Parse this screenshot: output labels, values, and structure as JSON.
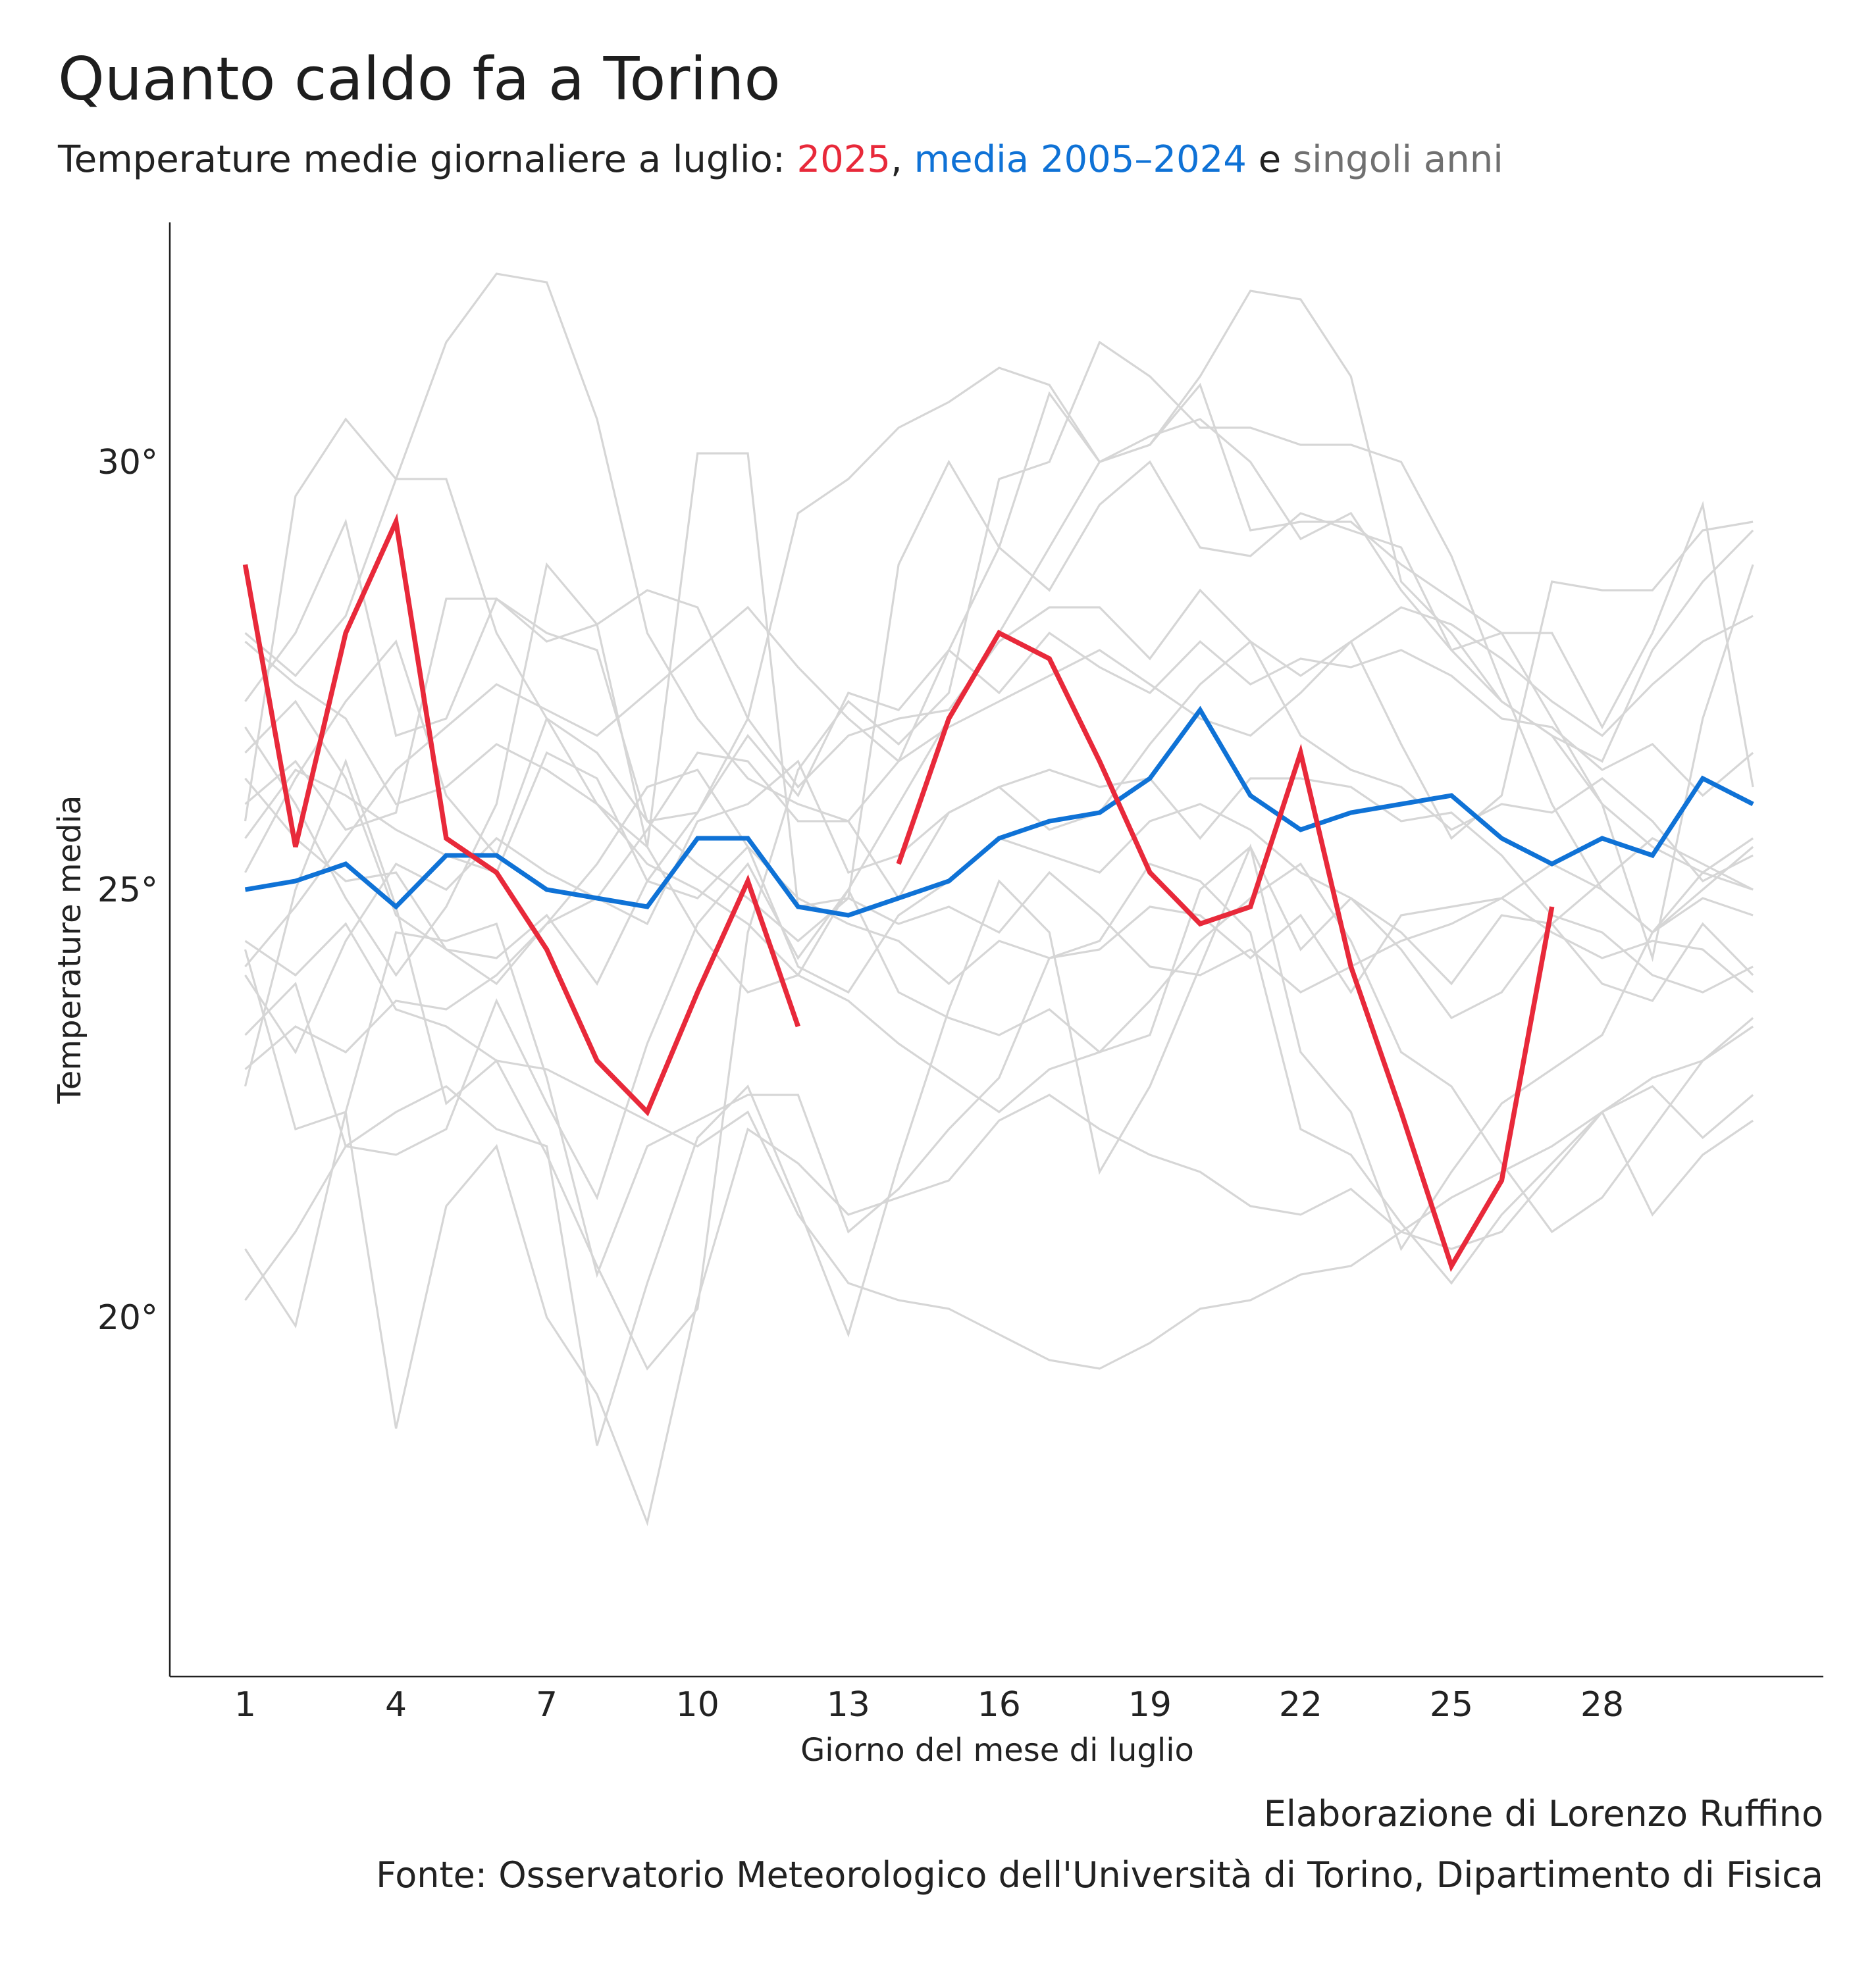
{
  "title": "Quanto caldo fa a Torino",
  "subtitle": {
    "prefix": "Temperature medie giornaliere a luglio: ",
    "year": "2025",
    "sep": ", ",
    "mean": "media 2005–2024",
    "conj": " e ",
    "single": "singoli anni"
  },
  "caption": {
    "author": "Elaborazione di Lorenzo Ruffino",
    "source": "Fonte: Osservatorio Meteorologico dell'Università di Torino, Dipartimento di Fisica"
  },
  "colors": {
    "year2025": "#e8293a",
    "mean": "#0f72d6",
    "single": "#d6d6d6",
    "axis": "#222222"
  },
  "chart_data": {
    "type": "line",
    "xlabel": "Giorno del mese di luglio",
    "ylabel": "Temperature media",
    "x_ticks": [
      1,
      4,
      7,
      10,
      13,
      16,
      19,
      22,
      25,
      28
    ],
    "x_tick_labels": [
      "1",
      "4",
      "7",
      "10",
      "13",
      "16",
      "19",
      "22",
      "25",
      "28"
    ],
    "y_ticks": [
      20,
      25,
      30
    ],
    "y_tick_labels": [
      "20°",
      "25°",
      "30°"
    ],
    "xlim": [
      -0.5,
      32.4
    ],
    "ylim": [
      15.8,
      32.8
    ],
    "grid": false,
    "days": [
      1,
      2,
      3,
      4,
      5,
      6,
      7,
      8,
      9,
      10,
      11,
      12,
      13,
      14,
      15,
      16,
      17,
      18,
      19,
      20,
      21,
      22,
      23,
      24,
      25,
      26,
      27,
      28,
      29,
      30,
      31
    ],
    "series": [
      {
        "name": "2025",
        "role": "highlight",
        "values": [
          28.8,
          25.5,
          28.0,
          29.3,
          25.6,
          25.2,
          24.3,
          23.0,
          22.4,
          23.8,
          25.1,
          23.4,
          null,
          25.3,
          27.0,
          28.0,
          27.7,
          26.5,
          25.2,
          24.6,
          24.8,
          26.6,
          24.1,
          22.4,
          20.6,
          21.6,
          24.8,
          null,
          null,
          null,
          null
        ]
      },
      {
        "name": "media 2005–2024",
        "role": "mean",
        "values": [
          25.0,
          25.1,
          25.3,
          24.8,
          25.4,
          25.4,
          25.0,
          24.9,
          24.8,
          25.6,
          25.6,
          24.8,
          24.7,
          24.9,
          25.1,
          25.6,
          25.8,
          25.9,
          26.3,
          27.1,
          26.1,
          25.7,
          25.9,
          26.0,
          26.1,
          25.6,
          25.3,
          25.6,
          25.4,
          26.3,
          26.0
        ]
      },
      {
        "role": "background",
        "values": [
          25.8,
          29.6,
          30.5,
          29.8,
          29.8,
          28.0,
          27.0,
          26.0,
          25.5,
          24.5,
          23.8,
          24.0,
          25.0,
          26.0,
          27.0,
          28.0,
          29.0,
          30.0,
          30.3,
          30.5,
          30.0,
          29.1,
          29.4,
          28.5,
          27.8,
          27.2,
          26.8,
          26.0,
          25.5,
          25.2,
          25.0
        ]
      },
      {
        "role": "background",
        "values": [
          28.0,
          27.5,
          28.2,
          29.8,
          31.4,
          32.2,
          32.1,
          30.5,
          28.0,
          27.0,
          26.3,
          26.0,
          25.8,
          26.5,
          27.8,
          29.0,
          30.8,
          30.0,
          30.2,
          31.0,
          32.0,
          31.9,
          31.0,
          28.6,
          28.0,
          27.2,
          26.8,
          26.5,
          27.8,
          28.6,
          29.2
        ]
      },
      {
        "role": "background",
        "values": [
          22.7,
          25.0,
          26.5,
          24.8,
          22.5,
          23.0,
          21.9,
          20.6,
          19.4,
          20.1,
          24.5,
          26.4,
          27.2,
          26.7,
          27.3,
          29.8,
          30.0,
          31.4,
          31.0,
          30.4,
          30.4,
          30.2,
          30.2,
          30.0,
          28.9,
          27.4,
          26.0,
          25.0,
          24.5,
          25.0,
          25.5
        ]
      },
      {
        "role": "background",
        "values": [
          27.2,
          28.0,
          29.3,
          26.8,
          27.0,
          28.4,
          28.0,
          27.8,
          25.8,
          25.9,
          27.0,
          29.4,
          29.8,
          30.4,
          30.7,
          31.1,
          30.9,
          30.0,
          30.2,
          30.9,
          29.2,
          29.3,
          29.3,
          28.8,
          28.4,
          28.0,
          27.0,
          26.0,
          24.2,
          27.0,
          28.8
        ]
      },
      {
        "role": "background",
        "values": [
          26.0,
          26.5,
          25.7,
          25.9,
          28.4,
          28.4,
          27.9,
          28.1,
          25.5,
          30.1,
          30.1,
          24.8,
          24.9,
          28.8,
          30.0,
          29.0,
          28.5,
          29.5,
          30.0,
          29.0,
          28.9,
          29.4,
          29.2,
          29.0,
          27.8,
          28.0,
          28.0,
          26.9,
          28.0,
          29.5,
          26.2
        ]
      },
      {
        "role": "background",
        "values": [
          26.9,
          26.0,
          24.9,
          24.0,
          24.8,
          26.0,
          28.8,
          28.1,
          28.5,
          28.3,
          27.0,
          26.2,
          26.8,
          27.0,
          27.1,
          27.9,
          28.3,
          28.3,
          27.7,
          28.5,
          27.9,
          27.5,
          27.9,
          26.7,
          25.6,
          26.1,
          28.6,
          28.5,
          28.5,
          29.2,
          29.3
        ]
      },
      {
        "role": "background",
        "values": [
          24.4,
          24.0,
          24.6,
          23.6,
          23.4,
          23.0,
          22.9,
          22.6,
          22.3,
          22.0,
          22.4,
          21.2,
          20.4,
          20.2,
          20.1,
          19.8,
          19.5,
          19.4,
          19.7,
          20.1,
          20.2,
          20.5,
          20.6,
          21.0,
          21.4,
          21.7,
          22.0,
          22.4,
          22.8,
          23.0,
          23.5
        ]
      },
      {
        "role": "background",
        "values": [
          20.2,
          21.0,
          22.0,
          22.4,
          22.7,
          22.2,
          22.0,
          18.5,
          20.4,
          22.1,
          22.7,
          21.3,
          19.8,
          21.8,
          23.6,
          25.1,
          24.5,
          21.7,
          22.7,
          24.1,
          25.5,
          23.1,
          22.4,
          20.8,
          21.7,
          22.5,
          22.9,
          23.3,
          24.5,
          24.9,
          24.7
        ]
      },
      {
        "role": "background",
        "values": [
          24.3,
          22.2,
          22.4,
          18.7,
          21.3,
          22.0,
          20.0,
          19.1,
          17.6,
          20.2,
          22.2,
          21.8,
          21.2,
          21.4,
          21.6,
          22.3,
          22.6,
          22.2,
          21.9,
          21.7,
          21.3,
          21.2,
          21.5,
          21.0,
          20.8,
          21.0,
          21.7,
          22.4,
          22.7,
          22.1,
          22.6
        ]
      },
      {
        "role": "background",
        "values": [
          20.8,
          19.9,
          22.4,
          24.5,
          24.4,
          24.6,
          22.8,
          20.5,
          22.0,
          22.3,
          22.6,
          22.6,
          21.0,
          21.5,
          22.2,
          22.8,
          24.2,
          24.4,
          25.3,
          25.1,
          24.5,
          22.2,
          21.9,
          21.1,
          20.4,
          21.2,
          21.8,
          22.4,
          21.2,
          21.9,
          22.3
        ]
      },
      {
        "role": "background",
        "values": [
          23.3,
          23.9,
          22.0,
          21.9,
          22.2,
          23.7,
          22.5,
          21.4,
          23.2,
          24.6,
          25.3,
          24.2,
          25.0,
          23.8,
          23.5,
          23.3,
          23.6,
          23.1,
          23.3,
          25.0,
          25.5,
          24.3,
          24.9,
          24.5,
          23.9,
          24.7,
          24.6,
          23.9,
          23.7,
          24.6,
          24.0
        ]
      },
      {
        "role": "background",
        "values": [
          22.9,
          23.4,
          23.1,
          23.7,
          23.6,
          24.0,
          24.6,
          24.9,
          25.7,
          26.6,
          26.5,
          25.8,
          25.8,
          24.9,
          25.9,
          26.2,
          26.4,
          26.2,
          26.3,
          25.6,
          26.3,
          26.3,
          26.2,
          25.8,
          25.9,
          25.4,
          24.7,
          24.5,
          24.0,
          23.8,
          24.1
        ]
      },
      {
        "role": "background",
        "values": [
          25.6,
          26.4,
          26.1,
          25.7,
          25.4,
          25.2,
          26.6,
          26.3,
          25.1,
          25.9,
          26.8,
          26.1,
          27.3,
          27.1,
          27.8,
          27.3,
          28.0,
          27.6,
          27.3,
          27.9,
          27.4,
          27.7,
          27.6,
          27.8,
          27.5,
          27.0,
          26.9,
          26.4,
          26.7,
          26.1,
          26.6
        ]
      },
      {
        "role": "background",
        "values": [
          26.6,
          27.2,
          26.3,
          24.7,
          24.3,
          24.2,
          24.7,
          23.9,
          25.1,
          24.9,
          25.5,
          24.9,
          24.6,
          24.4,
          23.9,
          24.4,
          24.2,
          24.3,
          24.8,
          24.7,
          24.2,
          24.7,
          23.8,
          24.7,
          24.8,
          24.9,
          24.5,
          24.2,
          24.4,
          24.3,
          23.8
        ]
      },
      {
        "role": "background",
        "values": [
          24.0,
          23.1,
          24.4,
          25.3,
          25.0,
          25.6,
          25.2,
          24.9,
          24.6,
          25.8,
          26.0,
          26.5,
          25.2,
          25.4,
          25.9,
          26.2,
          25.7,
          25.9,
          26.7,
          27.4,
          27.9,
          26.8,
          26.4,
          26.2,
          25.7,
          26.0,
          25.9,
          26.3,
          25.8,
          25.1,
          25.4
        ]
      },
      {
        "role": "background",
        "values": [
          27.9,
          27.4,
          27.0,
          26.0,
          26.2,
          26.7,
          26.4,
          26.0,
          25.3,
          25.0,
          24.6,
          24.0,
          23.7,
          23.2,
          22.8,
          22.4,
          22.9,
          23.1,
          23.7,
          24.4,
          24.9,
          25.3,
          24.4,
          23.1,
          22.7,
          21.8,
          21.0,
          21.4,
          22.2,
          23.0,
          23.4
        ]
      },
      {
        "role": "background",
        "values": [
          25.2,
          26.3,
          27.2,
          27.9,
          26.1,
          25.4,
          27.0,
          26.6,
          25.8,
          25.3,
          24.9,
          24.4,
          24.9,
          24.6,
          24.8,
          24.5,
          25.2,
          24.7,
          24.1,
          24.0,
          24.3,
          23.8,
          24.1,
          24.4,
          24.6,
          24.9,
          25.3,
          25.0,
          24.5,
          25.2,
          25.6
        ]
      },
      {
        "role": "background",
        "values": [
          26.3,
          25.6,
          25.1,
          25.2,
          24.3,
          23.9,
          24.6,
          25.3,
          26.2,
          26.4,
          25.5,
          24.1,
          23.8,
          24.7,
          25.1,
          25.6,
          25.4,
          25.2,
          25.8,
          26.0,
          25.7,
          25.2,
          24.9,
          24.3,
          23.5,
          23.8,
          24.6,
          25.1,
          25.6,
          25.3,
          25.0
        ]
      },
      {
        "role": "background",
        "values": [
          24.1,
          24.8,
          25.6,
          26.4,
          26.9,
          27.4,
          27.1,
          26.8,
          27.3,
          27.8,
          28.3,
          27.6,
          27.0,
          26.5,
          26.9,
          27.2,
          27.5,
          27.8,
          27.4,
          27.0,
          26.8,
          27.3,
          27.9,
          28.3,
          28.1,
          27.7,
          27.2,
          26.8,
          27.4,
          27.9,
          28.2
        ]
      }
    ]
  }
}
